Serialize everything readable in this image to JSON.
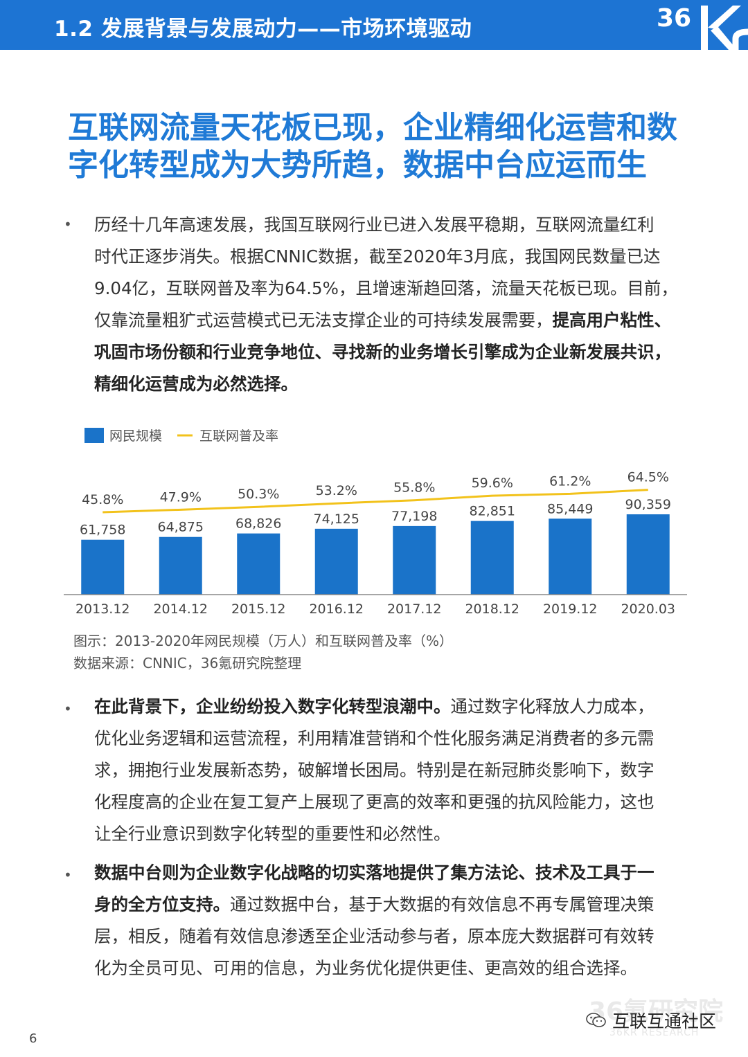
{
  "header": {
    "title": "1.2 发展背景与发展动力——市场环境驱动",
    "logo_text": "36Kr"
  },
  "main_title": {
    "line1": "互联网流量天花板已现，企业精细化运营和数",
    "line2": "字化转型成为大势所趋，数据中台应运而生"
  },
  "bullet_mark": "•",
  "paragraphs": [
    {
      "lines": [
        [
          {
            "t": "历经十几年高速发展，我国互联网行业已进入发展平稳期，互联网流量红利",
            "b": false
          }
        ],
        [
          {
            "t": "时代正逐步消失。根据CNNIC数据，截至2020年3月底，我国网民数量已达",
            "b": false
          }
        ],
        [
          {
            "t": "9.04亿，互联网普及率为64.5%，且增速渐趋回落，流量天花板已现。目前，",
            "b": false
          }
        ],
        [
          {
            "t": "仅靠流量粗犷式运营模式已无法支撑企业的可持续发展需要，",
            "b": false
          },
          {
            "t": "提高用户粘性、",
            "b": true
          }
        ],
        [
          {
            "t": "巩固市场份额和行业竞争地位、寻找新的业务增长引擎成为企业新发展共识，",
            "b": true
          }
        ],
        [
          {
            "t": "精细化运营成为必然选择。",
            "b": true
          }
        ]
      ]
    },
    {
      "lines": [
        [
          {
            "t": "在此背景下，企业纷纷投入数字化转型浪潮中。",
            "b": true
          },
          {
            "t": "通过数字化释放人力成本，",
            "b": false
          }
        ],
        [
          {
            "t": "优化业务逻辑和运营流程，利用精准营销和个性化服务满足消费者的多元需",
            "b": false
          }
        ],
        [
          {
            "t": "求，拥抱行业发展新态势，破解增长困局。特别是在新冠肺炎影响下，数字",
            "b": false
          }
        ],
        [
          {
            "t": "化程度高的企业在复工复产上展现了更高的效率和更强的抗风险能力，这也",
            "b": false
          }
        ],
        [
          {
            "t": "让全行业意识到数字化转型的重要性和必然性。",
            "b": false
          }
        ]
      ]
    },
    {
      "lines": [
        [
          {
            "t": "数据中台则为企业数字化战略的切实落地提供了集方法论、技术及工具于一",
            "b": true
          }
        ],
        [
          {
            "t": "身的全方位支持。",
            "b": true
          },
          {
            "t": "通过数据中台，基于大数据的有效信息不再专属管理决策",
            "b": false
          }
        ],
        [
          {
            "t": "层，相反，随着有效信息渗透至企业活动参与者，原本庞大数据群可有效转",
            "b": false
          }
        ],
        [
          {
            "t": "化为全员可见、可用的信息，为业务优化提供更佳、更高效的组合选择。",
            "b": false
          }
        ]
      ]
    }
  ],
  "chart_data": {
    "type": "bar",
    "categories": [
      "2013.12",
      "2014.12",
      "2015.12",
      "2016.12",
      "2017.12",
      "2018.12",
      "2019.12",
      "2020.03"
    ],
    "series": [
      {
        "name": "网民规模",
        "kind": "bar",
        "color": "#1a73c9",
        "values": [
          61758,
          64875,
          68826,
          74125,
          77198,
          82851,
          85449,
          90359
        ],
        "labels": [
          "61,758",
          "64,875",
          "68,826",
          "74,125",
          "77,198",
          "82,851",
          "85,449",
          "90,359"
        ]
      },
      {
        "name": "互联网普及率",
        "kind": "line",
        "color": "#f2c21b",
        "values": [
          45.8,
          47.9,
          50.3,
          53.2,
          55.8,
          59.6,
          61.2,
          64.5
        ],
        "labels": [
          "45.8%",
          "47.9%",
          "50.3%",
          "53.2%",
          "55.8%",
          "59.6%",
          "61.2%",
          "64.5%"
        ]
      }
    ],
    "legend_position": "top-left",
    "grid": false
  },
  "chart_caption": {
    "line1": "图示：2013-2020年网民规模（万人）和互联网普及率（%）",
    "line2": "数据来源：CNNIC，36氪研究院整理"
  },
  "footer": {
    "watermark": "36氪研究院",
    "watermark_sub": "36KR RESEARCH",
    "community": "互联互通社区",
    "page_number": "6"
  }
}
